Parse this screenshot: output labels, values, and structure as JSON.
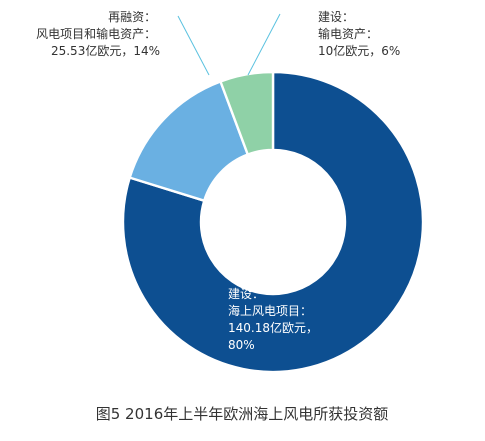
{
  "chart_data": {
    "type": "pie",
    "variant": "donut",
    "slices": [
      {
        "lines": [
          "建设：",
          "海上风电项目：",
          "140.18亿欧元，",
          "80%"
        ],
        "value": 140.18,
        "percent": 80,
        "color": "#0d4f91",
        "label_color": "#ffffff"
      },
      {
        "lines": [
          "再融资：",
          "风电项目和输电资产：",
          "25.53亿欧元，14%"
        ],
        "value": 25.53,
        "percent": 14,
        "color": "#6ab0e2",
        "label_color": "#333333"
      },
      {
        "lines": [
          "建设：",
          "输电资产：",
          "10亿欧元，6%"
        ],
        "value": 10,
        "percent": 6,
        "color": "#8fd1a7",
        "label_color": "#333333"
      }
    ],
    "caption": "图5  2016年上半年欧洲海上风电所获投资额",
    "leader_line_color": "#5bc2e0"
  }
}
